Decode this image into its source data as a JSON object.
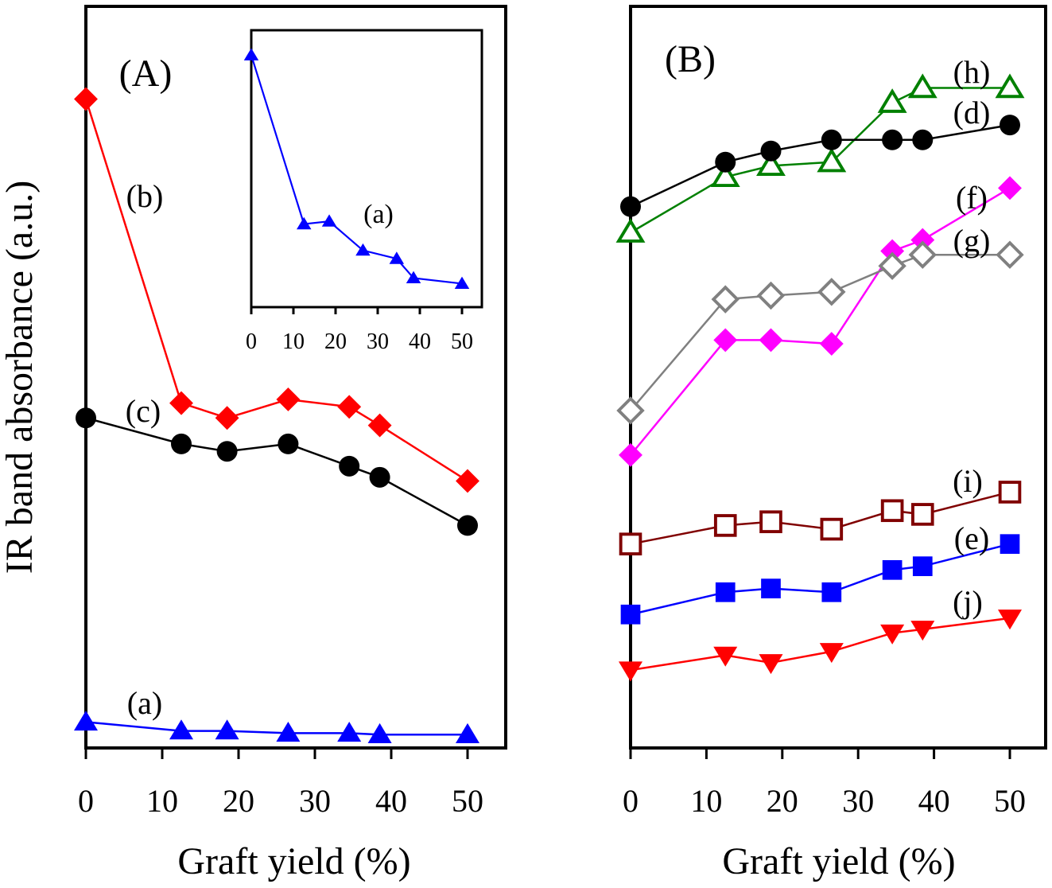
{
  "chart_data": [
    {
      "panel": "A",
      "type": "line",
      "panel_label": "(A)",
      "xlabel": "Graft yield (%)",
      "ylabel": "IR band absorbance (a.u.)",
      "xlim": [
        0,
        55
      ],
      "ylim": [
        0,
        100
      ],
      "x_ticks": [
        0,
        10,
        20,
        30,
        40,
        50
      ],
      "y_ticks_labeled": false,
      "grid": false,
      "x": [
        0,
        12.5,
        18.5,
        26.5,
        34.5,
        38.5,
        50
      ],
      "series": [
        {
          "name": "(a)",
          "color": "#0000ff",
          "marker": "triangle-up",
          "filled": true,
          "values": [
            3.5,
            2.3,
            2.3,
            2.0,
            2.0,
            1.8,
            1.8
          ]
        },
        {
          "name": "(b)",
          "color": "#ff0000",
          "marker": "diamond",
          "filled": true,
          "values": [
            87.5,
            46.5,
            44.5,
            47.0,
            46.0,
            43.5,
            36.0
          ]
        },
        {
          "name": "(c)",
          "color": "#000000",
          "marker": "circle",
          "filled": true,
          "values": [
            44.5,
            41.0,
            40.0,
            41.0,
            38.0,
            36.5,
            30.0
          ]
        }
      ],
      "inset": {
        "type": "line",
        "series_name": "(a)",
        "x_ticks": [
          0,
          10,
          20,
          30,
          40,
          50
        ],
        "xlim": [
          0,
          55
        ],
        "ylim": [
          0,
          100
        ],
        "x": [
          0,
          12.5,
          18.5,
          26.5,
          34.5,
          38.5,
          50
        ],
        "values": [
          91,
          30,
          31,
          20.5,
          17.5,
          10.5,
          8.5
        ],
        "color": "#0000ff",
        "label": "(a)"
      }
    },
    {
      "panel": "B",
      "type": "line",
      "panel_label": "(B)",
      "xlabel": "Graft yield (%)",
      "ylabel": "",
      "xlim": [
        0,
        55
      ],
      "ylim": [
        0,
        100
      ],
      "x_ticks": [
        0,
        10,
        20,
        30,
        40,
        50
      ],
      "y_ticks_labeled": false,
      "grid": false,
      "x": [
        0,
        12.5,
        18.5,
        26.5,
        34.5,
        38.5,
        50
      ],
      "series": [
        {
          "name": "(h)",
          "color": "#008000",
          "marker": "triangle-up",
          "filled": false,
          "values": [
            69.5,
            77.0,
            78.5,
            79.0,
            87.0,
            89.0,
            89.0
          ]
        },
        {
          "name": "(d)",
          "color": "#000000",
          "marker": "circle",
          "filled": true,
          "values": [
            73.0,
            79.0,
            80.5,
            82.0,
            82.0,
            82.0,
            84.0
          ]
        },
        {
          "name": "(f)",
          "color": "#ff00ff",
          "marker": "diamond",
          "filled": true,
          "values": [
            39.5,
            55.0,
            55.0,
            54.5,
            67.0,
            68.5,
            75.5
          ]
        },
        {
          "name": "(g)",
          "color": "#808080",
          "marker": "diamond",
          "filled": false,
          "values": [
            45.5,
            60.5,
            61.0,
            61.5,
            65.0,
            66.5,
            66.5
          ]
        },
        {
          "name": "(i)",
          "color": "#800000",
          "marker": "square",
          "filled": false,
          "values": [
            27.5,
            30.0,
            30.5,
            29.5,
            32.0,
            31.5,
            34.5
          ]
        },
        {
          "name": "(e)",
          "color": "#0000ff",
          "marker": "square",
          "filled": true,
          "values": [
            18.0,
            21.0,
            21.5,
            21.0,
            24.0,
            24.5,
            27.5
          ]
        },
        {
          "name": "(j)",
          "color": "#ff0000",
          "marker": "triangle-down",
          "filled": true,
          "values": [
            10.5,
            12.5,
            11.5,
            13.0,
            15.5,
            16.0,
            17.5
          ]
        }
      ]
    }
  ]
}
